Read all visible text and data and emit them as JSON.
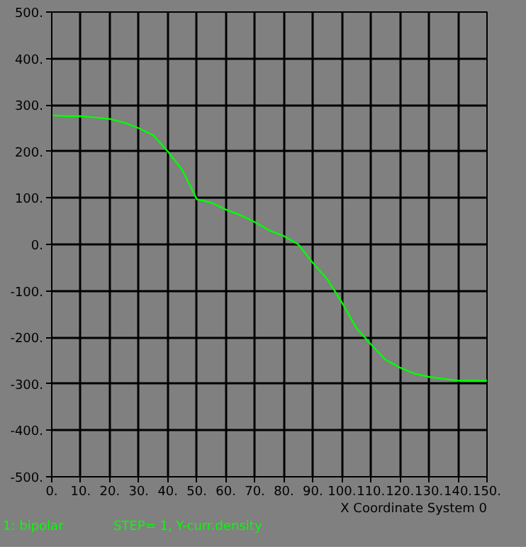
{
  "chart_data": {
    "type": "line",
    "xlabel": "X Coordinate System 0",
    "x": [
      0,
      5,
      10,
      15,
      20,
      25,
      30,
      35,
      40,
      45,
      50,
      55,
      60,
      65,
      70,
      75,
      80,
      85,
      90,
      95,
      100,
      105,
      110,
      115,
      120,
      125,
      130,
      135,
      140,
      150
    ],
    "series": [
      {
        "name": "1: bipolar",
        "color": "#00ff00",
        "values": [
          278,
          276,
          276,
          273,
          270,
          262,
          250,
          235,
          200,
          160,
          97,
          90,
          75,
          63,
          48,
          30,
          18,
          0,
          -40,
          -75,
          -125,
          -180,
          -215,
          -248,
          -265,
          -278,
          -285,
          -289,
          -293,
          -293
        ]
      }
    ],
    "annotations": [
      "STEP= 1,  Y-curr.density"
    ],
    "xlim": [
      0,
      150
    ],
    "ylim": [
      -500,
      500
    ],
    "xticks": [
      {
        "value": 0,
        "label": "0."
      },
      {
        "value": 10,
        "label": "10."
      },
      {
        "value": 20,
        "label": "20."
      },
      {
        "value": 30,
        "label": "30."
      },
      {
        "value": 40,
        "label": "40."
      },
      {
        "value": 50,
        "label": "50."
      },
      {
        "value": 60,
        "label": "60."
      },
      {
        "value": 70,
        "label": "70."
      },
      {
        "value": 80,
        "label": "80."
      },
      {
        "value": 90,
        "label": "90."
      },
      {
        "value": 100,
        "label": "100."
      },
      {
        "value": 110,
        "label": "110."
      },
      {
        "value": 120,
        "label": "120."
      },
      {
        "value": 130,
        "label": "130."
      },
      {
        "value": 140,
        "label": "140."
      },
      {
        "value": 150,
        "label": "150."
      }
    ],
    "yticks": [
      {
        "value": -500,
        "label": "-500."
      },
      {
        "value": -400,
        "label": "-400."
      },
      {
        "value": -300,
        "label": "-300."
      },
      {
        "value": -200,
        "label": "-200."
      },
      {
        "value": -100,
        "label": "-100."
      },
      {
        "value": 0,
        "label": "0."
      },
      {
        "value": 100,
        "label": "100."
      },
      {
        "value": 200,
        "label": "200."
      },
      {
        "value": 300,
        "label": "300."
      },
      {
        "value": 400,
        "label": "400."
      },
      {
        "value": 500,
        "label": "500."
      }
    ],
    "grid": true,
    "marker": "none",
    "line_style": "solid"
  }
}
